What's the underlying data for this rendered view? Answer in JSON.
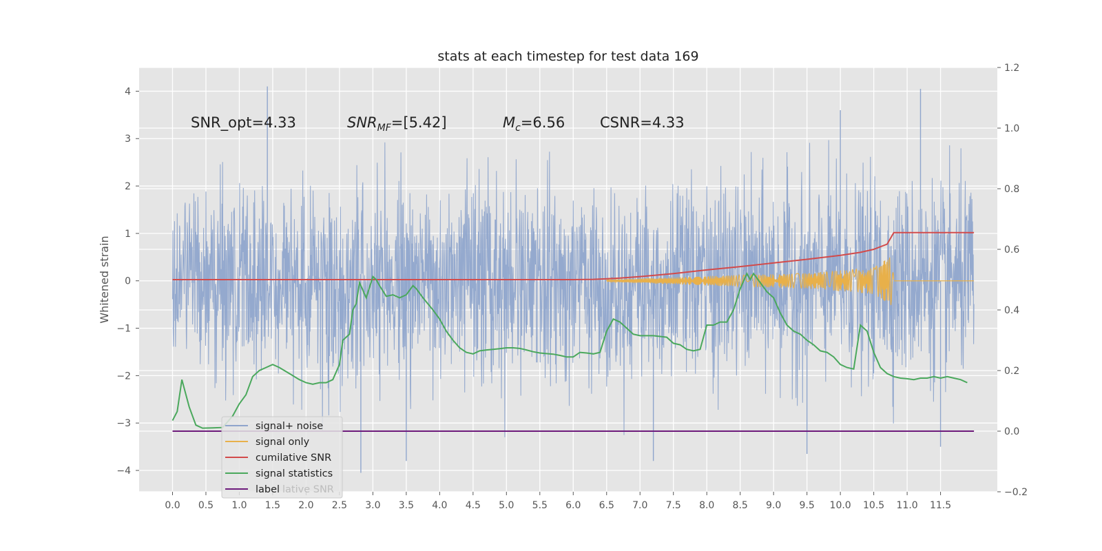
{
  "chart_data": {
    "type": "line",
    "title": "stats at each timestep for test data 169",
    "ylabel": "Whitened strain",
    "xlim": [
      -0.5,
      12.35
    ],
    "ylim": [
      -4.45,
      4.5
    ],
    "y2lim": [
      -0.2,
      1.2
    ],
    "x_ticks": [
      "0.0",
      "0.5",
      "1.0",
      "1.5",
      "2.0",
      "2.5",
      "3.0",
      "3.5",
      "4.0",
      "4.5",
      "5.0",
      "5.5",
      "6.0",
      "6.5",
      "7.0",
      "7.5",
      "8.0",
      "8.5",
      "9.0",
      "9.5",
      "10.0",
      "10.5",
      "11.0",
      "11.5"
    ],
    "y_ticks": [
      "4",
      "3",
      "2",
      "1",
      "0",
      "−1",
      "−2",
      "−3",
      "−4"
    ],
    "y2_ticks": [
      "1.2",
      "1.0",
      "0.8",
      "0.6",
      "0.4",
      "0.2",
      "0.0",
      "−0.2"
    ],
    "grid": true,
    "legend_position": "lower-left",
    "annotations": [
      {
        "text": "SNR_opt=4.33",
        "x": 0.2,
        "y": 3.2
      },
      {
        "text": "=[5.42]",
        "x": 2.6,
        "y": 3.2
      },
      {
        "text": "=6.56",
        "x": 5.0,
        "y": 3.2
      },
      {
        "text": "CSNR=4.33",
        "x": 6.5,
        "y": 3.2
      }
    ],
    "annotation_math": [
      {
        "base": "SNR",
        "sub": "MF"
      },
      {
        "base": "M",
        "sub": "c"
      }
    ],
    "series": [
      {
        "name": "signal+ noise",
        "axis": "left",
        "color": "#8fa5cc",
        "note": "stochastic strain about 0, |y| up to ~4.1",
        "x_range": [
          0.0,
          12.0
        ],
        "peaks": [
          [
            1.42,
            4.1
          ],
          [
            11.2,
            4.05
          ],
          [
            10.0,
            3.6
          ],
          [
            2.82,
            -4.05
          ],
          [
            7.2,
            -3.8
          ],
          [
            9.5,
            -3.65
          ],
          [
            11.5,
            -3.5
          ],
          [
            3.5,
            -3.8
          ]
        ]
      },
      {
        "name": "signal only",
        "axis": "left",
        "color": "#e8b04a",
        "x_range": [
          6.5,
          10.8
        ],
        "peak_amplitude": [
          [
            6.5,
            0.02
          ],
          [
            8.0,
            0.1
          ],
          [
            9.5,
            0.16
          ],
          [
            10.5,
            0.28
          ],
          [
            10.8,
            0.55
          ]
        ]
      },
      {
        "name": "cumilative SNR",
        "axis": "right",
        "color": "#d24a4a",
        "x": [
          0.0,
          6.0,
          6.3,
          6.5,
          6.7,
          7.0,
          7.5,
          8.0,
          8.5,
          9.0,
          9.5,
          10.0,
          10.3,
          10.5,
          10.7,
          10.8,
          12.0
        ],
        "y": [
          0.5,
          0.5,
          0.501,
          0.503,
          0.505,
          0.51,
          0.52,
          0.532,
          0.543,
          0.555,
          0.567,
          0.58,
          0.59,
          0.6,
          0.617,
          0.655,
          0.655
        ]
      },
      {
        "name": "signal statistics",
        "axis": "right",
        "color": "#4aa85c",
        "x": [
          0.0,
          0.07,
          0.14,
          0.25,
          0.35,
          0.45,
          0.6,
          0.75,
          0.9,
          1.0,
          1.1,
          1.2,
          1.3,
          1.4,
          1.5,
          1.6,
          1.75,
          1.9,
          2.0,
          2.1,
          2.2,
          2.3,
          2.4,
          2.5,
          2.55,
          2.65,
          2.7,
          2.75,
          2.8,
          2.9,
          3.0,
          3.05,
          3.1,
          3.2,
          3.3,
          3.4,
          3.5,
          3.6,
          3.65,
          3.75,
          3.9,
          4.0,
          4.1,
          4.2,
          4.3,
          4.4,
          4.5,
          4.6,
          4.7,
          4.8,
          4.9,
          5.0,
          5.1,
          5.2,
          5.3,
          5.4,
          5.5,
          5.6,
          5.7,
          5.8,
          5.9,
          6.0,
          6.1,
          6.2,
          6.3,
          6.4,
          6.5,
          6.6,
          6.7,
          6.8,
          6.9,
          7.0,
          7.2,
          7.4,
          7.5,
          7.6,
          7.7,
          7.8,
          7.9,
          8.0,
          8.1,
          8.2,
          8.3,
          8.4,
          8.5,
          8.6,
          8.65,
          8.7,
          8.8,
          8.9,
          9.0,
          9.1,
          9.2,
          9.3,
          9.4,
          9.5,
          9.6,
          9.7,
          9.8,
          9.9,
          10.0,
          10.1,
          10.2,
          10.3,
          10.4,
          10.5,
          10.6,
          10.7,
          10.8,
          10.9,
          11.0,
          11.1,
          11.2,
          11.3,
          11.4,
          11.5,
          11.6,
          11.7,
          11.8,
          11.9
        ],
        "y": [
          0.035,
          0.065,
          0.17,
          0.08,
          0.02,
          0.01,
          0.011,
          0.012,
          0.05,
          0.09,
          0.12,
          0.18,
          0.2,
          0.21,
          0.22,
          0.21,
          0.19,
          0.17,
          0.16,
          0.155,
          0.16,
          0.16,
          0.17,
          0.22,
          0.3,
          0.32,
          0.4,
          0.42,
          0.49,
          0.44,
          0.51,
          0.5,
          0.48,
          0.445,
          0.45,
          0.44,
          0.45,
          0.48,
          0.47,
          0.44,
          0.4,
          0.37,
          0.33,
          0.3,
          0.275,
          0.26,
          0.255,
          0.265,
          0.268,
          0.27,
          0.272,
          0.275,
          0.275,
          0.273,
          0.268,
          0.262,
          0.258,
          0.256,
          0.254,
          0.25,
          0.245,
          0.245,
          0.26,
          0.258,
          0.255,
          0.26,
          0.33,
          0.37,
          0.36,
          0.34,
          0.32,
          0.315,
          0.315,
          0.31,
          0.29,
          0.285,
          0.27,
          0.265,
          0.27,
          0.35,
          0.35,
          0.36,
          0.36,
          0.4,
          0.47,
          0.52,
          0.5,
          0.52,
          0.49,
          0.46,
          0.44,
          0.39,
          0.35,
          0.33,
          0.32,
          0.3,
          0.285,
          0.265,
          0.26,
          0.245,
          0.22,
          0.21,
          0.205,
          0.35,
          0.33,
          0.26,
          0.21,
          0.19,
          0.18,
          0.175,
          0.173,
          0.17,
          0.175,
          0.175,
          0.18,
          0.175,
          0.18,
          0.175,
          0.17,
          0.16
        ]
      },
      {
        "name": "label",
        "axis": "right",
        "color": "#6d1b7b",
        "x": [
          0.0,
          12.0
        ],
        "y": [
          0.0,
          0.0
        ]
      }
    ],
    "legend_ghost_text": "lative SNR"
  }
}
